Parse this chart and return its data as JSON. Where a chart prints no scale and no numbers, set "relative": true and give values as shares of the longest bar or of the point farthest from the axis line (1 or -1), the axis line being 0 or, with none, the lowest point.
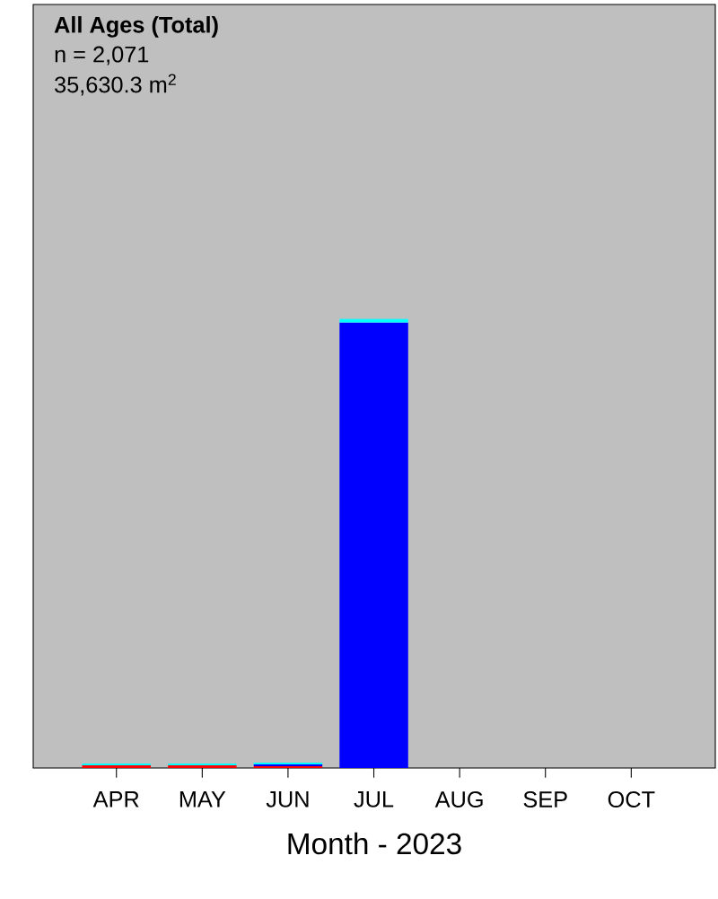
{
  "chart_data": {
    "type": "bar",
    "title": "All Ages (Total)",
    "xlabel": "Month - 2023",
    "relative": true,
    "stacked": true,
    "annotations": [
      "n = 2,071",
      "35,630.3 m$^{2}$"
    ],
    "categories": [
      "APR",
      "MAY",
      "JUN",
      "JUL",
      "AUG",
      "SEP",
      "OCT"
    ],
    "series": [
      {
        "color": "#ff0000",
        "values": [
          0.006,
          0.006,
          0.004,
          null,
          null,
          null,
          null
        ]
      },
      {
        "color": "#0000ff",
        "values": [
          null,
          null,
          0.004,
          0.992,
          null,
          null,
          null
        ]
      },
      {
        "color": "#00ffff",
        "values": [
          0.004,
          0.004,
          0.004,
          0.008,
          null,
          null,
          null
        ]
      }
    ]
  }
}
